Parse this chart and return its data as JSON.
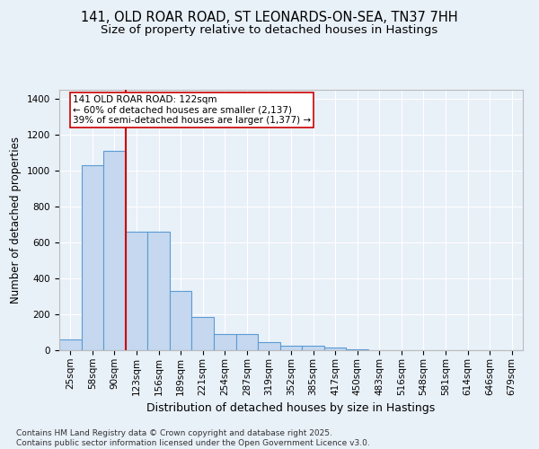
{
  "title": "141, OLD ROAR ROAD, ST LEONARDS-ON-SEA, TN37 7HH",
  "subtitle": "Size of property relative to detached houses in Hastings",
  "xlabel": "Distribution of detached houses by size in Hastings",
  "ylabel": "Number of detached properties",
  "categories": [
    "25sqm",
    "58sqm",
    "90sqm",
    "123sqm",
    "156sqm",
    "189sqm",
    "221sqm",
    "254sqm",
    "287sqm",
    "319sqm",
    "352sqm",
    "385sqm",
    "417sqm",
    "450sqm",
    "483sqm",
    "516sqm",
    "548sqm",
    "581sqm",
    "614sqm",
    "646sqm",
    "679sqm"
  ],
  "values": [
    62,
    1030,
    1110,
    660,
    660,
    330,
    185,
    88,
    88,
    45,
    27,
    25,
    13,
    5,
    0,
    0,
    0,
    0,
    0,
    0,
    0
  ],
  "bar_color": "#c5d8ef",
  "bar_edge_color": "#5b9bd5",
  "vline_pos": 2.5,
  "vline_color": "#cc0000",
  "annotation_text": "141 OLD ROAR ROAD: 122sqm\n← 60% of detached houses are smaller (2,137)\n39% of semi-detached houses are larger (1,377) →",
  "annotation_box_facecolor": "white",
  "annotation_box_edgecolor": "#cc0000",
  "ylim": [
    0,
    1450
  ],
  "yticks": [
    0,
    200,
    400,
    600,
    800,
    1000,
    1200,
    1400
  ],
  "background_color": "#e8f0f8",
  "grid_color": "#ffffff",
  "footnote": "Contains HM Land Registry data © Crown copyright and database right 2025.\nContains public sector information licensed under the Open Government Licence v3.0.",
  "title_fontsize": 10.5,
  "subtitle_fontsize": 9.5,
  "xlabel_fontsize": 9,
  "ylabel_fontsize": 8.5,
  "tick_fontsize": 7.5,
  "footnote_fontsize": 6.5,
  "annotation_fontsize": 7.5
}
